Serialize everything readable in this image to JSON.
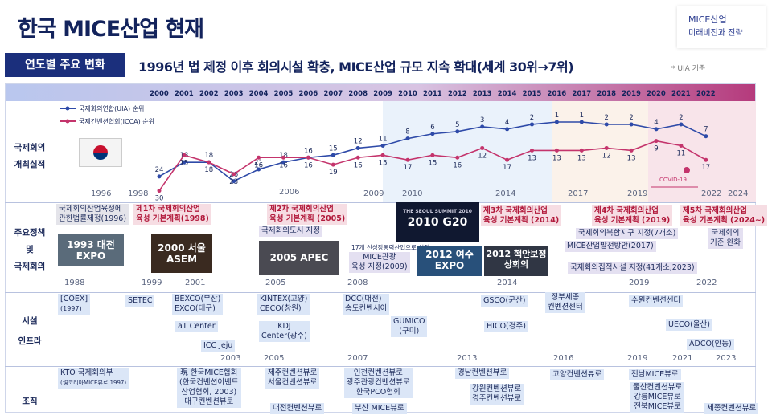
{
  "title": "한국 MICE산업 현재",
  "logo": {
    "line1": "MICE산업",
    "line2": "미래비전과 전략"
  },
  "section_label": "연도별 주요 변화",
  "headline": "1996년 법 제정 이후 회의시설 확충, MICE산업 규모 지속 확대(세계 30위→7위)",
  "headline_note": "* UIA 기준",
  "row_labels": {
    "r1a": "국제회의",
    "r1b": "개최실적",
    "r2a": "주요정책",
    "r2b": "및",
    "r2c": "국제회의",
    "r3a": "시설",
    "r3b": "인프라",
    "r4": "조직"
  },
  "chart_data": {
    "type": "line",
    "x": [
      "2000",
      "2001",
      "2002",
      "2003",
      "2004",
      "2005",
      "2006",
      "2007",
      "2008",
      "2009",
      "2010",
      "2011",
      "2012",
      "2013",
      "2014",
      "2015",
      "2016",
      "2017",
      "2018",
      "2019",
      "2020",
      "2021",
      "2022"
    ],
    "series": [
      {
        "name": "국제회의연합(UIA) 순위",
        "color": "#2e4aa8",
        "values": [
          24,
          18,
          18,
          26,
          21,
          18,
          16,
          15,
          12,
          11,
          8,
          6,
          5,
          3,
          4,
          2,
          1,
          1,
          2,
          2,
          4,
          2,
          7
        ]
      },
      {
        "name": "국제컨벤션협회(ICCA) 순위",
        "color": "#c4346c",
        "values": [
          30,
          15,
          18,
          23,
          16,
          16,
          16,
          19,
          16,
          15,
          17,
          15,
          16,
          12,
          17,
          13,
          13,
          13,
          12,
          13,
          9,
          11,
          17
        ]
      }
    ],
    "y_scale": "inverted rank",
    "covid_label": "COVID-19"
  },
  "years_top": [
    "2000",
    "2001",
    "2002",
    "2003",
    "2004",
    "2005",
    "2006",
    "2007",
    "2008",
    "2009",
    "2010",
    "2011",
    "2012",
    "2013",
    "2014",
    "2015",
    "2016",
    "2017",
    "2018",
    "2019",
    "2020",
    "2021",
    "2022"
  ],
  "band_years_r1": {
    "a": "1996",
    "b": "1998",
    "c": "2006",
    "d": "2009",
    "e": "2010",
    "f": "2014",
    "g": "2017",
    "h": "2019",
    "i": "2022",
    "j": "2024"
  },
  "band_years_r2": {
    "a": "1988",
    "b": "1999",
    "c": "2001",
    "d": "2005",
    "e": "2008",
    "f": "2014",
    "g": "2019",
    "h": "2022"
  },
  "band_years_r3": {
    "a": "2003",
    "b": "2005",
    "c": "2007",
    "d": "2013",
    "e": "2016",
    "f": "2019",
    "g": "2021",
    "h": "2023"
  },
  "policy": {
    "p1": "국제회의산업육성에",
    "p1b": "관한법률제정(1996)",
    "p2": "제1차 국제회의산업",
    "p2b": "육성 기본계획(1998)",
    "p3": "제2차 국제회의산업",
    "p3b": "육성 기본계획 (2005)",
    "p4": "국제회의도시 지정",
    "p5": "17개 신성장동력산업으로 선정",
    "p6": "MICE관광",
    "p6b": "육성 지정(2009)",
    "p7": "제3차 국제회의산업",
    "p7b": "육성 기본계획 (2014)",
    "p8": "제4차 국제회의산업",
    "p8b": "육성 기본계획 (2019)",
    "p9": "국제회의복합지구 지정(7개소)",
    "p10": "MICE산업발전방안(2017)",
    "p11": "국제회의집적시설 지정(41개소,2023)",
    "p12": "제5차 국제회의산업",
    "p12b": "육성 기본계획 (2024~)",
    "p13": "국제회의",
    "p13b": "기준 완화"
  },
  "events": {
    "e1": "1993 대전 EXPO",
    "e2": "2000 서울 ASEM",
    "e3": "2005 APEC",
    "e4": "2010 G20",
    "e5": "2012 여수 EXPO",
    "e6": "2012 핵안보정상회의",
    "e4_sub": "THE SEOUL SUMMIT 2010"
  },
  "infra": {
    "i1": "[COEX]",
    "i1b": "(1997)",
    "i2": "SETEC",
    "i3": "BEXCO(부산)",
    "i3b": "EXCO(대구)",
    "i4": "aT Center",
    "i5": "ICC Jeju",
    "i6": "KINTEX(고양)",
    "i6b": "CECO(창원)",
    "i7": "KDJ",
    "i7b": "Center(광주)",
    "i8": "DCC(대전)",
    "i8b": "송도컨벤시아",
    "i9": "GUMICO",
    "i9b": "(구미)",
    "i10": "GSCO(군산)",
    "i11": "HICO(경주)",
    "i12": "정부세종",
    "i12b": "컨벤션센터",
    "i13": "수원컨벤션센터",
    "i14": "UECO(울산)",
    "i15": "ADCO(안동)"
  },
  "org": {
    "o1": "KTO 국제회의부",
    "o1b": "(現코리아MICE뷰로,1997)",
    "o2": "現 한국MICE협회",
    "o2b": "(한국컨벤션이벤트",
    "o2c": "산업협회, 2003)",
    "o2d": "대구컨벤션뷰로",
    "o3": "제주컨벤션뷰로",
    "o3b": "서울컨벤션뷰로",
    "o4": "대전컨벤션뷰로",
    "o5": "인천컨벤션뷰로",
    "o5b": "광주관광컨벤션뷰로",
    "o5c": "한국PCO협회",
    "o6": "부산 MICE뷰로",
    "o7": "경남컨벤션뷰로",
    "o8": "강원컨벤션뷰로",
    "o8b": "경주컨벤션뷰로",
    "o9": "고양컨벤션뷰로",
    "o10": "전남MICE뷰로",
    "o11": "울산컨벤션뷰로",
    "o11b": "강릉MICE뷰로",
    "o11c": "전북MICE뷰로",
    "o12": "세종컨벤션뷰로"
  }
}
